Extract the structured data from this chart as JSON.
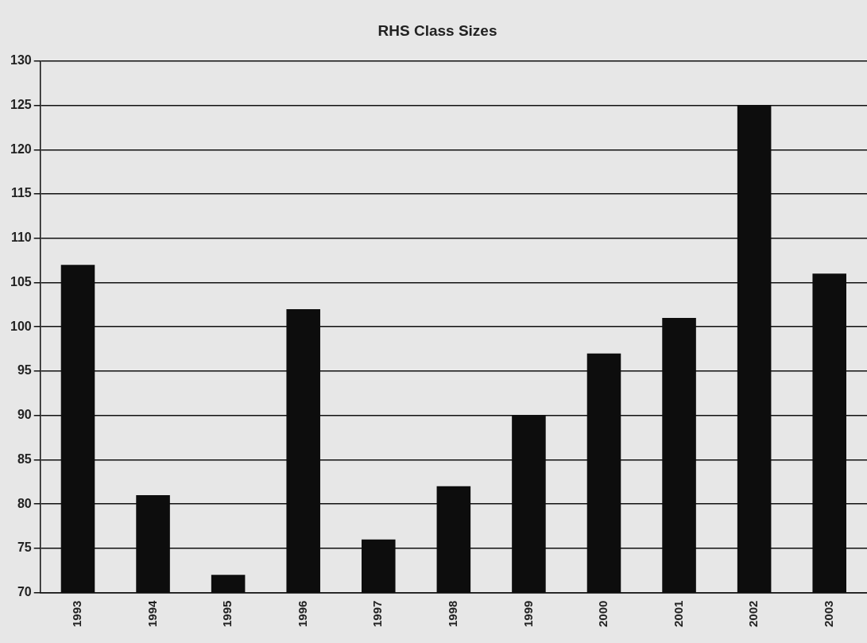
{
  "chart_data": {
    "type": "bar",
    "title": "RHS Class Sizes",
    "categories": [
      "1993",
      "1994",
      "1995",
      "1996",
      "1997",
      "1998",
      "1999",
      "2000",
      "2001",
      "2002",
      "2003"
    ],
    "values": [
      107,
      81,
      72,
      102,
      76,
      82,
      90,
      97,
      101,
      125,
      106
    ],
    "color": "#0d0d0d",
    "ylim": [
      70,
      130
    ],
    "yticks": [
      70,
      75,
      80,
      85,
      90,
      95,
      100,
      105,
      110,
      115,
      120,
      125,
      130
    ],
    "grid": "y"
  }
}
